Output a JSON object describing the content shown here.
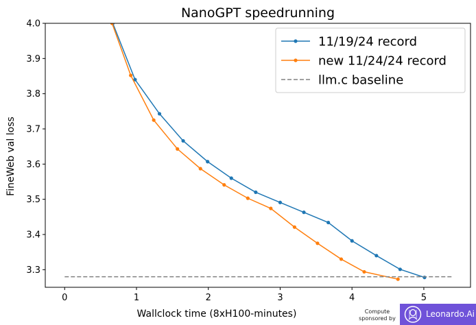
{
  "chart_data": {
    "type": "line",
    "title": "NanoGPT speedrunning",
    "xlabel": "Wallclock time (8xH100-minutes)",
    "ylabel": "FineWeb val loss",
    "xlim": [
      -0.27,
      5.65
    ],
    "ylim": [
      3.25,
      4.0
    ],
    "xticks": [
      "0",
      "1",
      "2",
      "3",
      "4",
      "5"
    ],
    "yticks": [
      "3.3",
      "3.4",
      "3.5",
      "3.6",
      "3.7",
      "3.8",
      "3.9",
      "4.0"
    ],
    "grid": false,
    "legend_position": "top-right",
    "series": [
      {
        "name": "11/19/24 record",
        "color": "#1f77b4",
        "style": "solid-marker",
        "x": [
          0.67,
          0.98,
          1.32,
          1.65,
          1.99,
          2.32,
          2.66,
          3.0,
          3.33,
          3.67,
          4.0,
          4.34,
          4.67,
          5.01
        ],
        "y": [
          4.0,
          3.84,
          3.743,
          3.666,
          3.607,
          3.56,
          3.52,
          3.491,
          3.463,
          3.434,
          3.382,
          3.34,
          3.301,
          3.278
        ]
      },
      {
        "name": "new 11/24/24 record",
        "color": "#ff7f0e",
        "style": "solid-marker",
        "x": [
          0.66,
          0.92,
          1.24,
          1.57,
          1.89,
          2.22,
          2.55,
          2.87,
          3.2,
          3.52,
          3.85,
          4.17,
          4.64
        ],
        "y": [
          4.0,
          3.852,
          3.725,
          3.643,
          3.587,
          3.541,
          3.503,
          3.474,
          3.421,
          3.375,
          3.33,
          3.294,
          3.273
        ]
      },
      {
        "name": "llm.c baseline",
        "color": "#808080",
        "style": "dashed",
        "x": [
          0,
          5.4
        ],
        "y": [
          3.28,
          3.28
        ]
      }
    ]
  },
  "sponsor": {
    "label": "Compute\nsponsored by",
    "brand": "Leonardo.Ai",
    "brand_color": "#6f52d9",
    "icon": "leonardo-logo-icon"
  }
}
